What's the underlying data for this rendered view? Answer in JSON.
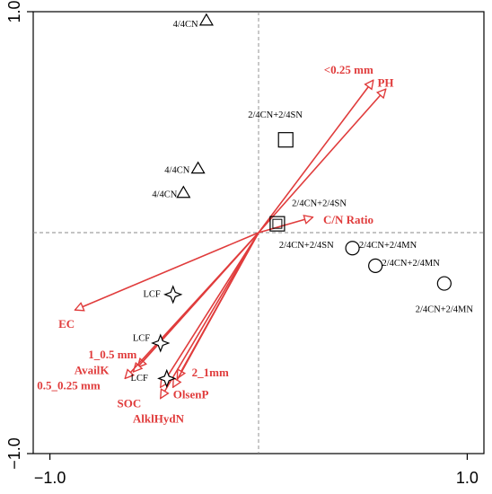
{
  "chart_data": {
    "type": "scatter",
    "title": "",
    "xlabel": "",
    "ylabel": "",
    "xlim": [
      -1.08,
      1.08
    ],
    "ylim": [
      -1.0,
      1.0
    ],
    "x_ticks": [
      {
        "value": -1.0,
        "label": "−1.0"
      },
      {
        "value": 1.0,
        "label": "1.0"
      }
    ],
    "y_ticks": [
      {
        "value": 1.0,
        "label": "1.0"
      },
      {
        "value": -1.0,
        "label": "−1.0"
      }
    ],
    "grid": false,
    "reference_lines": [
      {
        "axis": "x",
        "value": 0
      },
      {
        "axis": "y",
        "value": 0
      }
    ],
    "vector_color": "#e03c3c",
    "vectors": [
      {
        "name": "<0.25 mm",
        "x": 0.55,
        "y": 0.69,
        "label_anchor": "end",
        "label_x": 0.55,
        "label_y": 0.72
      },
      {
        "name": "PH",
        "x": 0.61,
        "y": 0.65,
        "label_anchor": "start",
        "label_x": 0.57,
        "label_y": 0.66
      },
      {
        "name": "C/N Ratio",
        "x": 0.26,
        "y": 0.07,
        "label_anchor": "start",
        "label_x": 0.31,
        "label_y": 0.04
      },
      {
        "name": "EC",
        "x": -0.88,
        "y": -0.35,
        "label_anchor": "middle",
        "label_x": -0.92,
        "label_y": -0.43
      },
      {
        "name": "1_0.5 mm",
        "x": -0.58,
        "y": -0.61,
        "label_anchor": "middle",
        "label_x": -0.7,
        "label_y": -0.57
      },
      {
        "name": "AvailK",
        "x": -0.6,
        "y": -0.63,
        "label_anchor": "middle",
        "label_x": -0.8,
        "label_y": -0.64
      },
      {
        "name": "0.5_0.25 mm",
        "x": -0.64,
        "y": -0.66,
        "label_anchor": "middle",
        "label_x": -0.91,
        "label_y": -0.71
      },
      {
        "name": "2_1mm",
        "x": -0.39,
        "y": -0.66,
        "label_anchor": "start",
        "label_x": -0.32,
        "label_y": -0.65
      },
      {
        "name": "OlsenP",
        "x": -0.41,
        "y": -0.7,
        "label_anchor": "start",
        "label_x": -0.41,
        "label_y": -0.75
      },
      {
        "name": "SOC",
        "x": -0.47,
        "y": -0.7,
        "label_anchor": "middle",
        "label_x": -0.62,
        "label_y": -0.79
      },
      {
        "name": "AlklHydN",
        "x": -0.47,
        "y": -0.75,
        "label_anchor": "middle",
        "label_x": -0.48,
        "label_y": -0.86
      }
    ],
    "series": [
      {
        "marker": "triangle",
        "points": [
          {
            "x": -0.25,
            "y": 0.96,
            "label": "4/4CN",
            "label_anchor": "end",
            "label_x": -0.29,
            "label_y": 0.93
          },
          {
            "x": -0.29,
            "y": 0.29,
            "label": "4/4CN",
            "label_anchor": "end",
            "label_x": -0.33,
            "label_y": 0.27
          },
          {
            "x": -0.36,
            "y": 0.18,
            "label": "4/4CN",
            "label_anchor": "end",
            "label_x": -0.39,
            "label_y": 0.16
          }
        ]
      },
      {
        "marker": "square",
        "points": [
          {
            "x": 0.13,
            "y": 0.42,
            "label": "2/4CN+2/4SN",
            "label_anchor": "middle",
            "label_x": 0.08,
            "label_y": 0.52
          },
          {
            "x": 0.09,
            "y": 0.04,
            "label": "2/4CN+2/4SN",
            "label_anchor": "start",
            "label_x": 0.16,
            "label_y": 0.12
          }
        ]
      },
      {
        "marker": "circle",
        "points": [
          {
            "x": 0.45,
            "y": -0.07,
            "label": "2/4CN+2/4SN",
            "label_anchor": "end",
            "label_x": 0.36,
            "label_y": -0.07
          },
          {
            "x": 0.56,
            "y": -0.15,
            "label": "2/4CN+2/4MN",
            "label_anchor": "middle",
            "label_x": 0.62,
            "label_y": -0.07
          },
          {
            "x": 0.89,
            "y": -0.23,
            "label": "2/4CN+2/4MN",
            "label_anchor": "middle",
            "label_x": 0.73,
            "label_y": -0.15
          },
          {
            "x": 0.0,
            "y": 0.0,
            "label": "2/4CN+2/4MN",
            "label_anchor": "middle",
            "label_x": 0.89,
            "label_y": -0.36,
            "hidden_marker": true
          }
        ]
      },
      {
        "marker": "star4",
        "points": [
          {
            "x": -0.41,
            "y": -0.28,
            "label": "LCF",
            "label_anchor": "end",
            "label_x": -0.47,
            "label_y": -0.29
          },
          {
            "x": -0.47,
            "y": -0.5,
            "label": "LCF",
            "label_anchor": "end",
            "label_x": -0.52,
            "label_y": -0.49
          },
          {
            "x": -0.44,
            "y": -0.66,
            "label": "LCF",
            "label_anchor": "end",
            "label_x": -0.53,
            "label_y": -0.67
          }
        ]
      }
    ]
  }
}
